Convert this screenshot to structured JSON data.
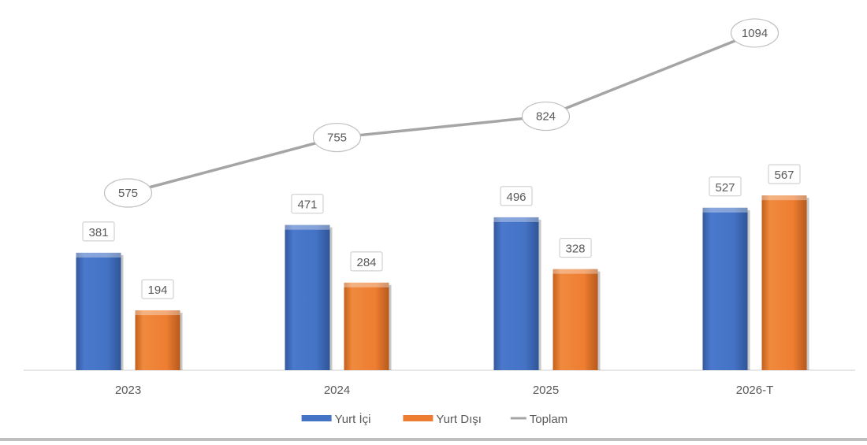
{
  "chart_data": {
    "type": "bar",
    "categories": [
      "2023",
      "2024",
      "2025",
      "2026-T"
    ],
    "series": [
      {
        "name": "Yurt İçi",
        "kind": "bar",
        "color": "#4472C4",
        "values": [
          381,
          471,
          496,
          527
        ]
      },
      {
        "name": "Yurt Dışı",
        "kind": "bar",
        "color": "#ED7D31",
        "values": [
          194,
          284,
          328,
          567
        ]
      },
      {
        "name": "Toplam",
        "kind": "line",
        "color": "#A5A5A5",
        "values": [
          575,
          755,
          824,
          1094
        ]
      }
    ],
    "ylim": [
      0,
      1150
    ],
    "grid": false,
    "legend_position": "bottom"
  }
}
